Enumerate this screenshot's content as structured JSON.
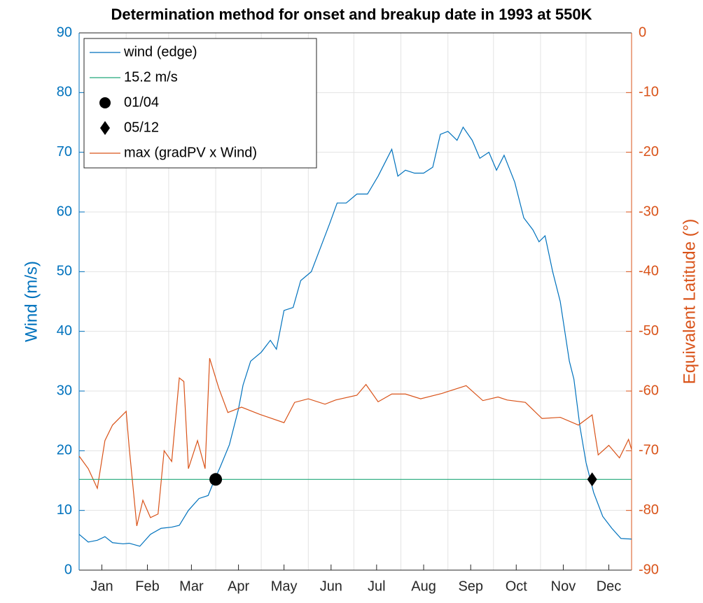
{
  "chart_data": {
    "type": "line",
    "title": "Determination method for onset and breakup date in 1993 at 550K",
    "y_label": "Wind (m/s)",
    "y2_label": "Equivalent Latitude (°)",
    "xlim": [
      1,
      365
    ],
    "ylim": [
      0,
      90
    ],
    "y2lim": [
      -90,
      0
    ],
    "xticks": [
      {
        "value": 16,
        "label": "Jan"
      },
      {
        "value": 46,
        "label": "Feb"
      },
      {
        "value": 75,
        "label": "Mar"
      },
      {
        "value": 106,
        "label": "Apr"
      },
      {
        "value": 136,
        "label": "May"
      },
      {
        "value": 167,
        "label": "Jun"
      },
      {
        "value": 197,
        "label": "Jul"
      },
      {
        "value": 228,
        "label": "Aug"
      },
      {
        "value": 259,
        "label": "Sep"
      },
      {
        "value": 289,
        "label": "Oct"
      },
      {
        "value": 320,
        "label": "Nov"
      },
      {
        "value": 350,
        "label": "Dec"
      }
    ],
    "xgrid": [
      32,
      60,
      91,
      121,
      152,
      182,
      213,
      244,
      274,
      305,
      335
    ],
    "yticks": [
      0,
      10,
      20,
      30,
      40,
      50,
      60,
      70,
      80,
      90
    ],
    "y2ticks": [
      -90,
      -80,
      -70,
      -60,
      -50,
      -40,
      -30,
      -20,
      -10,
      0
    ],
    "grid": true,
    "legend": "upper left",
    "series": [
      {
        "name": "wind (edge)",
        "color": "#0072bd",
        "x": [
          1,
          7,
          13,
          18,
          23,
          30,
          34,
          41,
          48,
          55,
          62,
          67,
          73,
          80,
          86,
          90,
          94,
          100,
          106,
          109,
          114,
          121,
          127,
          131,
          136,
          142,
          147,
          154,
          160,
          166,
          171,
          177,
          184,
          191,
          198,
          204,
          207,
          211,
          216,
          222,
          228,
          234,
          239,
          244,
          250,
          254,
          260,
          265,
          271,
          276,
          281,
          288,
          294,
          300,
          304,
          308,
          313,
          318,
          324,
          327,
          331,
          335,
          340,
          346,
          352,
          358,
          365
        ],
        "values": [
          6,
          4.7,
          5,
          5.6,
          4.6,
          4.4,
          4.5,
          4,
          6,
          7,
          7.2,
          7.5,
          10,
          12,
          12.5,
          15,
          17.3,
          21,
          27,
          31,
          35,
          36.5,
          38.5,
          37,
          43.5,
          44,
          48.5,
          50,
          54,
          58,
          61.5,
          61.5,
          63,
          63,
          66,
          69,
          70.5,
          66,
          67,
          66.5,
          66.5,
          67.5,
          73,
          73.5,
          72,
          74.2,
          72,
          69,
          70,
          67,
          69.5,
          65,
          59,
          57,
          55,
          56,
          50,
          45,
          35,
          32,
          24,
          18,
          13,
          9,
          7,
          5.3,
          5.2
        ]
      },
      {
        "name": "max (gradPV x Wind)",
        "color": "#d95319",
        "axis": "y2",
        "x": [
          1,
          7,
          13,
          18,
          23,
          32,
          34,
          39,
          43,
          48,
          53,
          57,
          62,
          67,
          70,
          73,
          79,
          84,
          87,
          93,
          99,
          108,
          120,
          136,
          143,
          152,
          163,
          170,
          184,
          190,
          198,
          207,
          216,
          226,
          240,
          256,
          267,
          277,
          283,
          295,
          306,
          318,
          330,
          339,
          343,
          350,
          357,
          363,
          365
        ],
        "values": [
          -70.9,
          -73,
          -76.3,
          -68.3,
          -65.7,
          -63.4,
          -69.5,
          -82.6,
          -78.3,
          -81.2,
          -80.6,
          -70,
          -71.8,
          -57.8,
          -58.4,
          -73,
          -68.3,
          -73,
          -54.5,
          -59.5,
          -63.6,
          -62.7,
          -63.9,
          -65.3,
          -61.9,
          -61.3,
          -62.2,
          -61.5,
          -60.7,
          -58.9,
          -61.8,
          -60.5,
          -60.5,
          -61.3,
          -60.4,
          -59.1,
          -61.6,
          -61,
          -61.5,
          -61.9,
          -64.6,
          -64.4,
          -65.7,
          -64,
          -70.7,
          -69.1,
          -71.2,
          -68.1,
          -69.8
        ]
      }
    ],
    "threshold": {
      "name": "15.2 m/s",
      "value": 15.2,
      "color": "#20a87a"
    },
    "points": [
      {
        "name": "01/04",
        "x": 91,
        "y": 15.2,
        "marker": "circle"
      },
      {
        "name": "05/12",
        "x": 339,
        "y": 15.2,
        "marker": "diamond"
      }
    ]
  }
}
